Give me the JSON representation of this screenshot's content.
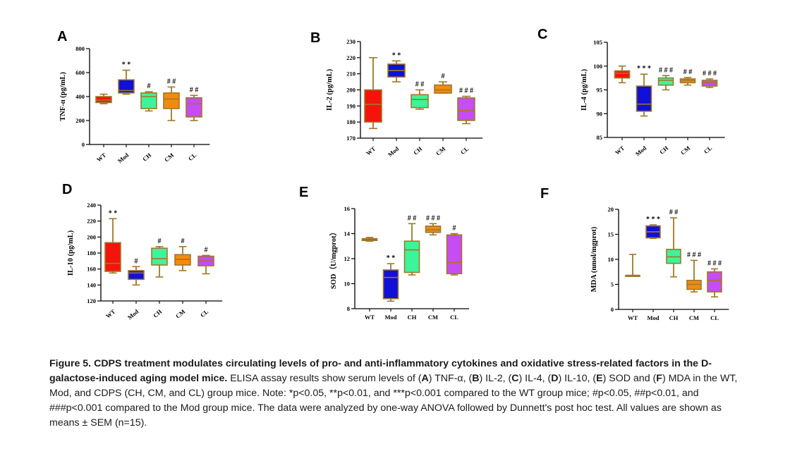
{
  "chart_data": [
    {
      "type": "box",
      "panel": "A",
      "ylabel": "TNF-α (pg/mL)",
      "ylim": [
        0,
        800
      ],
      "yticks": [
        0,
        200,
        400,
        600,
        800
      ],
      "categories": [
        "WT",
        "Mod",
        "CH",
        "CM",
        "CL"
      ],
      "colors": [
        "#f4140c",
        "#1010d8",
        "#3cf49a",
        "#f48a0c",
        "#c64cf4"
      ],
      "boxes": [
        {
          "min": 340,
          "q1": 350,
          "median": 370,
          "q3": 400,
          "max": 420,
          "mark": ""
        },
        {
          "min": 420,
          "q1": 430,
          "median": 450,
          "q3": 540,
          "max": 620,
          "mark": "* *"
        },
        {
          "min": 280,
          "q1": 300,
          "median": 400,
          "q3": 430,
          "max": 440,
          "mark": "#"
        },
        {
          "min": 200,
          "q1": 300,
          "median": 380,
          "q3": 430,
          "max": 480,
          "mark": "# #"
        },
        {
          "min": 200,
          "q1": 230,
          "median": 340,
          "q3": 390,
          "max": 410,
          "mark": "# #"
        }
      ]
    },
    {
      "type": "box",
      "panel": "B",
      "ylabel": "IL-2 (pg/mL)",
      "ylim": [
        170,
        230
      ],
      "yticks": [
        170,
        180,
        190,
        200,
        210,
        220,
        230
      ],
      "categories": [
        "WT",
        "Mod",
        "CH",
        "CM",
        "CL"
      ],
      "colors": [
        "#f4140c",
        "#1010d8",
        "#3cf49a",
        "#f48a0c",
        "#c64cf4"
      ],
      "boxes": [
        {
          "min": 176,
          "q1": 180,
          "median": 191,
          "q3": 200,
          "max": 220,
          "mark": ""
        },
        {
          "min": 205,
          "q1": 208,
          "median": 212,
          "q3": 216,
          "max": 218,
          "mark": "* *"
        },
        {
          "min": 188,
          "q1": 189,
          "median": 194,
          "q3": 197,
          "max": 200,
          "mark": "# #"
        },
        {
          "min": 198,
          "q1": 198,
          "median": 200,
          "q3": 203,
          "max": 205,
          "mark": "#"
        },
        {
          "min": 179,
          "q1": 181,
          "median": 187,
          "q3": 195,
          "max": 196,
          "mark": "# # #"
        }
      ]
    },
    {
      "type": "box",
      "panel": "C",
      "ylabel": "IL-4 (pg/mL)",
      "ylim": [
        85,
        105
      ],
      "yticks": [
        85,
        90,
        95,
        100,
        105
      ],
      "categories": [
        "WT",
        "Mod",
        "CH",
        "CM",
        "CL"
      ],
      "colors": [
        "#f4140c",
        "#1010d8",
        "#3cf49a",
        "#f48a0c",
        "#c64cf4"
      ],
      "boxes": [
        {
          "min": 96.5,
          "q1": 97.5,
          "median": 98.5,
          "q3": 99,
          "max": 100,
          "mark": ""
        },
        {
          "min": 89.5,
          "q1": 90.5,
          "median": 92,
          "q3": 95.8,
          "max": 98.3,
          "mark": "* * *"
        },
        {
          "min": 95,
          "q1": 96,
          "median": 97,
          "q3": 97.5,
          "max": 98,
          "mark": "# # #"
        },
        {
          "min": 96,
          "q1": 96.5,
          "median": 97,
          "q3": 97.3,
          "max": 97.6,
          "mark": "# #"
        },
        {
          "min": 95.5,
          "q1": 95.8,
          "median": 96.5,
          "q3": 97,
          "max": 97.3,
          "mark": "# # #"
        }
      ]
    },
    {
      "type": "box",
      "panel": "D",
      "ylabel": "IL-10 (pg/mL)",
      "ylim": [
        120,
        240
      ],
      "yticks": [
        120,
        140,
        160,
        180,
        200,
        220,
        240
      ],
      "categories": [
        "WT",
        "Mod",
        "CH",
        "CM",
        "CL"
      ],
      "colors": [
        "#f4140c",
        "#1010d8",
        "#3cf49a",
        "#f48a0c",
        "#c64cf4"
      ],
      "boxes": [
        {
          "min": 155,
          "q1": 157,
          "median": 167,
          "q3": 193,
          "max": 223,
          "mark": "* *"
        },
        {
          "min": 140,
          "q1": 147,
          "median": 155,
          "q3": 158,
          "max": 163,
          "mark": "#"
        },
        {
          "min": 150,
          "q1": 165,
          "median": 173,
          "q3": 186,
          "max": 188,
          "mark": "#"
        },
        {
          "min": 158,
          "q1": 165,
          "median": 172,
          "q3": 178,
          "max": 188,
          "mark": "#"
        },
        {
          "min": 154,
          "q1": 164,
          "median": 170,
          "q3": 176,
          "max": 177,
          "mark": "#"
        }
      ]
    },
    {
      "type": "box",
      "panel": "E",
      "ylabel": "SOD（U/mgprot）",
      "ylim": [
        8,
        16
      ],
      "yticks": [
        8,
        10,
        12,
        14,
        16
      ],
      "categories": [
        "WT",
        "Mod",
        "CH",
        "CM",
        "CL"
      ],
      "colors": [
        "#f4140c",
        "#1010d8",
        "#3cf49a",
        "#f48a0c",
        "#c64cf4"
      ],
      "boxes": [
        {
          "min": 13.4,
          "q1": 13.45,
          "median": 13.5,
          "q3": 13.6,
          "max": 13.7,
          "mark": ""
        },
        {
          "min": 8.6,
          "q1": 8.8,
          "median": 10.5,
          "q3": 11.1,
          "max": 11.6,
          "mark": "* *"
        },
        {
          "min": 10.7,
          "q1": 10.9,
          "median": 12.7,
          "q3": 13.4,
          "max": 14.8,
          "mark": "# #"
        },
        {
          "min": 13.9,
          "q1": 14.1,
          "median": 14.3,
          "q3": 14.6,
          "max": 14.8,
          "mark": "# # #"
        },
        {
          "min": 10.7,
          "q1": 10.8,
          "median": 11.7,
          "q3": 13.9,
          "max": 14.0,
          "mark": "#"
        }
      ]
    },
    {
      "type": "box",
      "panel": "F",
      "ylabel": "MDA (nmol/mgprot)",
      "ylim": [
        0,
        20
      ],
      "yticks": [
        0,
        5,
        10,
        15,
        20
      ],
      "categories": [
        "WT",
        "Mod",
        "CH",
        "CM",
        "CL"
      ],
      "colors": [
        "#f4140c",
        "#1010d8",
        "#3cf49a",
        "#f48a0c",
        "#c64cf4"
      ],
      "boxes": [
        {
          "min": 6.8,
          "q1": 6.8,
          "median": 6.8,
          "q3": 6.8,
          "max": 11,
          "mark": ""
        },
        {
          "min": 14.2,
          "q1": 14.3,
          "median": 15.5,
          "q3": 16.7,
          "max": 16.9,
          "mark": "* * *"
        },
        {
          "min": 6.5,
          "q1": 9.2,
          "median": 10.5,
          "q3": 12.0,
          "max": 18.3,
          "mark": "# #"
        },
        {
          "min": 3.5,
          "q1": 4.0,
          "median": 5.0,
          "q3": 5.8,
          "max": 9.8,
          "mark": "# # #"
        },
        {
          "min": 2.5,
          "q1": 3.5,
          "median": 5.8,
          "q3": 7.5,
          "max": 8.1,
          "mark": "# # #"
        }
      ]
    }
  ],
  "caption": {
    "title": "Figure 5. CDPS treatment modulates circulating levels of pro- and anti-inflammatory cytokines and oxidative stress-related factors in the D-galactose-induced aging model mice.",
    "t1": " ELISA assay results show serum levels of (",
    "A": "A",
    "t2": ") TNF-α, (",
    "B": "B",
    "t3": ") IL-2, (",
    "C": "C",
    "t4": ") IL-4, (",
    "D": "D",
    "t5": ") IL-10, (",
    "E": "E",
    "t6": ") SOD and (",
    "F": "F",
    "t7": ") MDA in the WT, Mod, and CDPS (CH, CM, and CL) group mice. Note: *p<0.05, **p<0.01, and ***p<0.001 compared to the WT group mice; #p<0.05, ##p<0.01, and ###p<0.001 compared to the Mod group mice. The data were analyzed by one-way ANOVA followed by Dunnett's post hoc test. All values are shown as means ± SEM (n=15)."
  }
}
